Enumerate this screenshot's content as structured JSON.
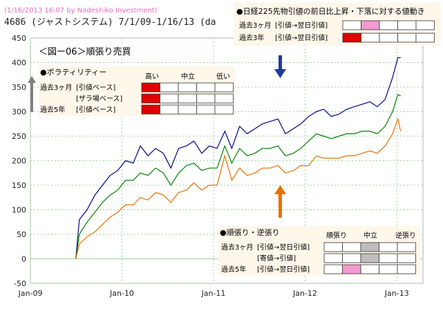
{
  "header": {
    "credit": "(1/16/2013 16:07 by Nadeshiko Investment)",
    "title": "4686 (ジャストシステム) 7/1/09-1/16/13 (da"
  },
  "figure_label": "＜図ー06＞順張り売買",
  "volatility_box": {
    "title": "●ボラティリティー",
    "col_headers": [
      "高い",
      "中立",
      "低い"
    ],
    "rows": [
      {
        "period": "過去3ヶ月",
        "type": "[引値ベース]",
        "filled_cells": 1
      },
      {
        "period": "",
        "type": "[ザラ場ベース]",
        "filled_cells": 1
      },
      {
        "period": "過去5年",
        "type": "[引値ベース]",
        "filled_cells": 1
      }
    ],
    "fill_color": "#e00000"
  },
  "nikkei_box": {
    "title": "●日経225先物引値の前日比上昇・下落に対する値動き",
    "rows": [
      {
        "period": "過去3ヶ月",
        "type": "[引値→翌日引値]",
        "filled_cell": 2,
        "color": "#f29ad0"
      },
      {
        "period": "過去3年",
        "type": "[引値→翌日引値]",
        "filled_cell": 1,
        "color": "#e00000"
      }
    ]
  },
  "trend_box": {
    "title": "●順張り・逆張り",
    "col_headers": [
      "順張り",
      "中立",
      "逆張り"
    ],
    "rows": [
      {
        "period": "過去3ヶ月",
        "type": "[引値→翌日引値]",
        "filled_cell": 3,
        "color": "#bdbdbd"
      },
      {
        "period": "",
        "type": "[寄値→引値]",
        "filled_cell": 3,
        "color": "#bdbdbd"
      },
      {
        "period": "過去5年",
        "type": "[引値→翌日引値]",
        "filled_cell": 2,
        "color": "#f29ad0"
      }
    ]
  },
  "chart_data": {
    "type": "line",
    "ylim": [
      -50,
      450
    ],
    "yticks": [
      -50,
      0,
      50,
      100,
      150,
      200,
      250,
      300,
      350,
      400,
      450
    ],
    "xlim": [
      "2009-01-01",
      "2013-04-15"
    ],
    "xticks": [
      "Jan-09",
      "Jan-10",
      "Jan-11",
      "Jan-12",
      "Jan-13"
    ],
    "grid": true,
    "series": [
      {
        "color": "#000080",
        "x": [
          "2009-07-01",
          "2009-07-15",
          "2009-08-15",
          "2009-09-15",
          "2009-10-15",
          "2009-11-15",
          "2009-12-15",
          "2010-01-15",
          "2010-02-15",
          "2010-03-15",
          "2010-04-15",
          "2010-05-15",
          "2010-06-15",
          "2010-07-15",
          "2010-08-15",
          "2010-09-15",
          "2010-10-15",
          "2010-11-15",
          "2010-12-15",
          "2011-01-15",
          "2011-02-15",
          "2011-03-15",
          "2011-04-15",
          "2011-05-15",
          "2011-06-15",
          "2011-07-15",
          "2011-08-15",
          "2011-09-15",
          "2011-10-15",
          "2011-11-15",
          "2011-12-15",
          "2012-01-15",
          "2012-02-15",
          "2012-03-15",
          "2012-04-15",
          "2012-05-15",
          "2012-06-15",
          "2012-07-15",
          "2012-08-15",
          "2012-09-15",
          "2012-10-15",
          "2012-11-15",
          "2012-12-15",
          "2013-01-05",
          "2013-01-16"
        ],
        "values": [
          0,
          80,
          100,
          130,
          150,
          170,
          180,
          200,
          195,
          230,
          210,
          225,
          215,
          185,
          225,
          230,
          240,
          215,
          230,
          225,
          260,
          225,
          270,
          255,
          265,
          275,
          280,
          285,
          255,
          265,
          275,
          290,
          300,
          305,
          290,
          295,
          305,
          310,
          315,
          320,
          310,
          325,
          370,
          410,
          410
        ]
      },
      {
        "color": "#008000",
        "x": [
          "2009-07-01",
          "2009-07-15",
          "2009-08-15",
          "2009-09-15",
          "2009-10-15",
          "2009-11-15",
          "2009-12-15",
          "2010-01-15",
          "2010-02-15",
          "2010-03-15",
          "2010-04-15",
          "2010-05-15",
          "2010-06-15",
          "2010-07-15",
          "2010-08-15",
          "2010-09-15",
          "2010-10-15",
          "2010-11-15",
          "2010-12-15",
          "2011-01-15",
          "2011-02-15",
          "2011-03-15",
          "2011-04-15",
          "2011-05-15",
          "2011-06-15",
          "2011-07-15",
          "2011-08-15",
          "2011-09-15",
          "2011-10-15",
          "2011-11-15",
          "2011-12-15",
          "2012-01-15",
          "2012-02-15",
          "2012-03-15",
          "2012-04-15",
          "2012-05-15",
          "2012-06-15",
          "2012-07-15",
          "2012-08-15",
          "2012-09-15",
          "2012-10-15",
          "2012-11-15",
          "2012-12-15",
          "2013-01-05",
          "2013-01-16"
        ],
        "values": [
          0,
          50,
          75,
          95,
          115,
          130,
          140,
          160,
          160,
          175,
          170,
          185,
          175,
          150,
          175,
          190,
          195,
          180,
          185,
          185,
          230,
          195,
          225,
          210,
          215,
          225,
          225,
          230,
          210,
          215,
          225,
          240,
          255,
          250,
          245,
          250,
          255,
          255,
          260,
          260,
          255,
          270,
          300,
          335,
          332
        ]
      },
      {
        "color": "#e87000",
        "x": [
          "2009-07-01",
          "2009-07-15",
          "2009-08-15",
          "2009-09-15",
          "2009-10-15",
          "2009-11-15",
          "2009-12-15",
          "2010-01-15",
          "2010-02-15",
          "2010-03-15",
          "2010-04-15",
          "2010-05-15",
          "2010-06-15",
          "2010-07-15",
          "2010-08-15",
          "2010-09-15",
          "2010-10-15",
          "2010-11-15",
          "2010-12-15",
          "2011-01-15",
          "2011-02-15",
          "2011-03-15",
          "2011-04-15",
          "2011-05-15",
          "2011-06-15",
          "2011-07-15",
          "2011-08-15",
          "2011-09-15",
          "2011-10-15",
          "2011-11-15",
          "2011-12-15",
          "2012-01-15",
          "2012-02-15",
          "2012-03-15",
          "2012-04-15",
          "2012-05-15",
          "2012-06-15",
          "2012-07-15",
          "2012-08-15",
          "2012-09-15",
          "2012-10-15",
          "2012-11-15",
          "2012-12-15",
          "2013-01-05",
          "2013-01-16"
        ],
        "values": [
          0,
          30,
          45,
          55,
          70,
          85,
          95,
          110,
          110,
          125,
          120,
          135,
          130,
          115,
          135,
          140,
          155,
          140,
          150,
          150,
          210,
          160,
          185,
          170,
          175,
          185,
          185,
          190,
          175,
          180,
          190,
          190,
          210,
          205,
          205,
          205,
          210,
          210,
          215,
          220,
          215,
          230,
          255,
          285,
          260
        ]
      }
    ]
  }
}
